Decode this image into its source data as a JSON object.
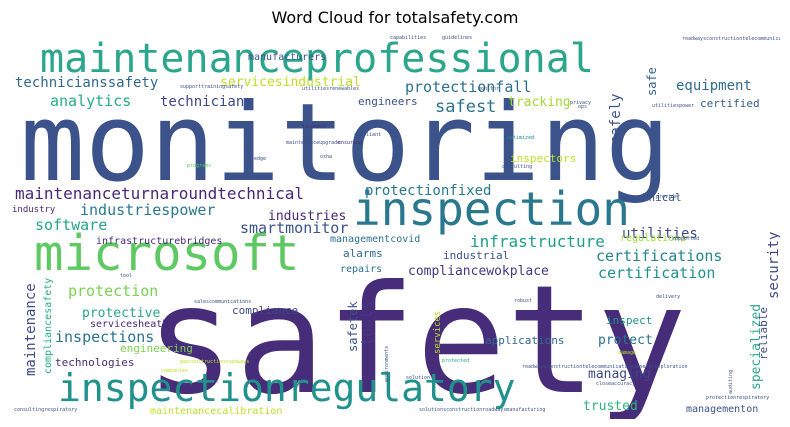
{
  "chart_data": {
    "type": "word_cloud",
    "title": "Word Cloud for totalsafety.com",
    "words": [
      {
        "text": "monitoring",
        "weight": 1.0,
        "color": "#3b528b"
      },
      {
        "text": "safety",
        "weight": 0.98,
        "color": "#472c7a"
      },
      {
        "text": "maintenanceprofessional",
        "weight": 0.55,
        "color": "#2ca58d"
      },
      {
        "text": "inspection",
        "weight": 0.47,
        "color": "#2a788e"
      },
      {
        "text": "microsoft",
        "weight": 0.47,
        "color": "#5ec962"
      },
      {
        "text": "inspectionregulatory",
        "weight": 0.39,
        "color": "#21918c"
      },
      {
        "text": "maintenanceturnaroundtechnical",
        "weight": 0.17,
        "color": "#482878"
      },
      {
        "text": "protectionfall",
        "weight": 0.17,
        "color": "#2c718e"
      },
      {
        "text": "technicianssafety",
        "weight": 0.15,
        "color": "#31688e"
      },
      {
        "text": "analytics",
        "weight": 0.15,
        "color": "#25ab82"
      },
      {
        "text": "technicians",
        "weight": 0.15,
        "color": "#3f4889"
      },
      {
        "text": "safest",
        "weight": 0.15,
        "color": "#2c728e"
      },
      {
        "text": "equipment",
        "weight": 0.15,
        "color": "#2f6c8e"
      },
      {
        "text": "industriespower",
        "weight": 0.14,
        "color": "#29798e"
      },
      {
        "text": "smartmonitor",
        "weight": 0.14,
        "color": "#3b528b"
      },
      {
        "text": "software",
        "weight": 0.14,
        "color": "#22a884"
      },
      {
        "text": "infrastructure",
        "weight": 0.14,
        "color": "#1f9e89"
      },
      {
        "text": "certifications",
        "weight": 0.15,
        "color": "#25848e"
      },
      {
        "text": "certification",
        "weight": 0.15,
        "color": "#21918c"
      },
      {
        "text": "utilities",
        "weight": 0.13,
        "color": "#3e4a89"
      },
      {
        "text": "protection",
        "weight": 0.14,
        "color": "#7ad151"
      },
      {
        "text": "inspections",
        "weight": 0.14,
        "color": "#2c728e"
      },
      {
        "text": "protectionfixed",
        "weight": 0.13,
        "color": "#2a788e"
      },
      {
        "text": "compliancewokplace",
        "weight": 0.12,
        "color": "#443983"
      },
      {
        "text": "tools",
        "weight": 0.14,
        "color": "#443983"
      },
      {
        "text": "maintenance",
        "weight": 0.13,
        "color": "#3e4a89"
      },
      {
        "text": "safely",
        "weight": 0.13,
        "color": "#3b528b"
      },
      {
        "text": "security",
        "weight": 0.13,
        "color": "#3f4889"
      },
      {
        "text": "trusted",
        "weight": 0.12,
        "color": "#2eb37c"
      },
      {
        "text": "specialized",
        "weight": 0.11,
        "color": "#2ca58d"
      },
      {
        "text": "tracking",
        "weight": 0.11,
        "color": "#a0da39"
      },
      {
        "text": "servicesindustrial",
        "weight": 0.11,
        "color": "#bddf26"
      },
      {
        "text": "industries",
        "weight": 0.1,
        "color": "#482878"
      },
      {
        "text": "protective",
        "weight": 0.1,
        "color": "#2ca58d"
      },
      {
        "text": "managing",
        "weight": 0.1,
        "color": "#3f4889"
      },
      {
        "text": "protect",
        "weight": 0.1,
        "color": "#2c728e"
      },
      {
        "text": "safetek",
        "weight": 0.1,
        "color": "#3b528b"
      },
      {
        "text": "technologies",
        "weight": 0.09,
        "color": "#472d7b"
      },
      {
        "text": "engineering",
        "weight": 0.09,
        "color": "#7ad151"
      },
      {
        "text": "servicesheath",
        "weight": 0.08,
        "color": "#482878"
      },
      {
        "text": "compliance",
        "weight": 0.08,
        "color": "#3e4a89"
      },
      {
        "text": "applications",
        "weight": 0.08,
        "color": "#31688e"
      },
      {
        "text": "reliable",
        "weight": 0.08,
        "color": "#3e4a89"
      },
      {
        "text": "inspect",
        "weight": 0.08,
        "color": "#21918c"
      },
      {
        "text": "technical",
        "weight": 0.08,
        "color": "#3b528b"
      },
      {
        "text": "engineers",
        "weight": 0.08,
        "color": "#3b528b"
      },
      {
        "text": "inspectors",
        "weight": 0.08,
        "color": "#bddf26"
      },
      {
        "text": "certified",
        "weight": 0.08,
        "color": "#35608d"
      },
      {
        "text": "industrial",
        "weight": 0.08,
        "color": "#3b528b"
      },
      {
        "text": "alarms",
        "weight": 0.08,
        "color": "#31688e"
      },
      {
        "text": "repairs",
        "weight": 0.08,
        "color": "#2c728e"
      },
      {
        "text": "regulations",
        "weight": 0.08,
        "color": "#a0da39"
      },
      {
        "text": "managementcovid",
        "weight": 0.08,
        "color": "#2c728e"
      },
      {
        "text": "infrastructurebridges",
        "weight": 0.07,
        "color": "#482878"
      },
      {
        "text": "maintenancecalibration",
        "weight": 0.07,
        "color": "#bddf26"
      },
      {
        "text": "managementon",
        "weight": 0.07,
        "color": "#3b528b"
      },
      {
        "text": "manufacturers",
        "weight": 0.07,
        "color": "#3b528b"
      },
      {
        "text": "industry",
        "weight": 0.07,
        "color": "#482878"
      },
      {
        "text": "compliancesafety",
        "weight": 0.07,
        "color": "#25ab82"
      },
      {
        "text": "services",
        "weight": 0.06,
        "color": "#bddf26"
      },
      {
        "text": "safe",
        "weight": 0.07,
        "color": "#35608d"
      }
    ]
  },
  "tiny_words": [
    "capabilities",
    "guidelines",
    "roadwaysconstructiontelecommunications",
    "supporttrainingsafety",
    "utilitiesrenewables",
    "monitor",
    "ops",
    "licenses",
    "maintenanceupgrade",
    "ensuring",
    "osha",
    "compliant",
    "optimized",
    "consulting",
    "programs",
    "edge",
    "tool",
    "privacy",
    "utilitiespower",
    "provider",
    "supported",
    "salescommunications",
    "environments",
    "robust",
    "solutions",
    "gasconstructionroadways",
    "roadwaysconstructiontelecommunicationsenergyexploration",
    "companies",
    "protected",
    "closeaccuracy",
    "protectionrespiratory",
    "auditing",
    "consultingrespiratory",
    "solutionsconstructionroadwaysmanufacturing",
    "damage",
    "delivery"
  ]
}
